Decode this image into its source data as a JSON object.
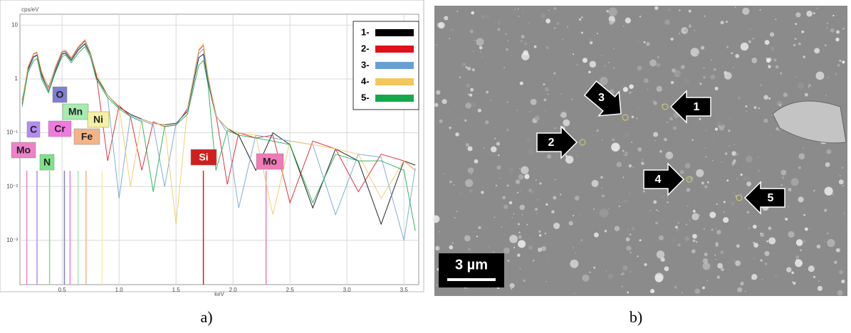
{
  "chart_data": {
    "type": "line",
    "y_label": "cps/eV",
    "x_label": "keV",
    "log_y": true,
    "grid": true,
    "legend": "upper right",
    "xlim": [
      0.13,
      3.63
    ],
    "xticks": [
      0.5,
      {
        "value": 1,
        "label": "1.0"
      },
      1.5,
      {
        "value": 2,
        "label": "2.0"
      },
      2.5,
      {
        "value": 3,
        "label": "3.0"
      },
      3.5
    ],
    "ylim": [
      0.00015,
      16
    ],
    "yticks": [
      {
        "value": 0.001,
        "label": "10⁻³"
      },
      {
        "value": 0.01,
        "label": "10⁻²"
      },
      {
        "value": 0.1,
        "label": "10⁻¹"
      },
      1,
      10
    ],
    "x": [
      0.15,
      0.2,
      0.25,
      0.28,
      0.32,
      0.38,
      0.44,
      0.5,
      0.53,
      0.58,
      0.64,
      0.7,
      0.75,
      0.8,
      0.9,
      1.0,
      1.1,
      1.2,
      1.3,
      1.4,
      1.5,
      1.6,
      1.7,
      1.74,
      1.78,
      1.85,
      1.95,
      2.05,
      2.2,
      2.35,
      2.5,
      2.7,
      2.9,
      3.1,
      3.3,
      3.5,
      3.6
    ],
    "series": [
      {
        "name": "1-",
        "color": "#000000",
        "values": [
          0.4,
          1.5,
          2.6,
          2.8,
          1.2,
          0.6,
          1.4,
          2.9,
          3.0,
          2.2,
          3.4,
          4.5,
          2.8,
          1.1,
          0.5,
          0.3,
          0.22,
          0.18,
          0.15,
          0.14,
          0.15,
          0.25,
          2.5,
          2.9,
          0.9,
          0.2,
          0.12,
          0.09,
          0.02,
          0.1,
          0.06,
          0.004,
          0.05,
          0.03,
          0.002,
          0.03,
          0.025
        ]
      },
      {
        "name": "2-",
        "color": "#e0101c",
        "values": [
          0.35,
          1.6,
          2.9,
          3.1,
          1.3,
          0.7,
          1.6,
          3.2,
          3.3,
          2.4,
          3.8,
          5.2,
          3.0,
          1.2,
          0.03,
          0.32,
          0.2,
          0.02,
          0.16,
          0.13,
          0.14,
          0.28,
          3.4,
          4.2,
          1.1,
          0.22,
          0.011,
          0.1,
          0.08,
          0.09,
          0.005,
          0.07,
          0.05,
          0.008,
          0.04,
          0.03,
          0.02
        ]
      },
      {
        "name": "3-",
        "color": "#6a9fd4",
        "values": [
          0.3,
          1.4,
          2.5,
          2.7,
          1.1,
          0.6,
          1.5,
          3.0,
          3.2,
          2.3,
          3.6,
          5.0,
          2.9,
          1.0,
          0.45,
          0.006,
          0.21,
          0.17,
          0.14,
          0.01,
          0.15,
          0.26,
          3.0,
          3.6,
          1.0,
          0.21,
          0.1,
          0.004,
          0.09,
          0.08,
          0.07,
          0.06,
          0.003,
          0.04,
          0.035,
          0.001,
          0.022
        ]
      },
      {
        "name": "4-",
        "color": "#f2c75c",
        "values": [
          0.38,
          1.7,
          3.0,
          3.2,
          1.4,
          0.65,
          1.7,
          3.4,
          3.5,
          2.5,
          4.0,
          5.5,
          3.1,
          1.3,
          0.5,
          0.31,
          0.01,
          0.18,
          0.15,
          0.14,
          0.002,
          0.27,
          3.6,
          4.5,
          1.2,
          0.2,
          0.12,
          0.1,
          0.09,
          0.003,
          0.07,
          0.06,
          0.05,
          0.04,
          0.006,
          0.03,
          0.02
        ]
      },
      {
        "name": "5-",
        "color": "#14a84a",
        "values": [
          0.33,
          1.3,
          2.2,
          2.4,
          1.0,
          0.55,
          1.3,
          2.6,
          2.8,
          2.0,
          3.0,
          4.0,
          2.5,
          1.0,
          0.45,
          0.28,
          0.2,
          0.16,
          0.008,
          0.13,
          0.14,
          0.22,
          1.8,
          2.2,
          0.8,
          0.02,
          0.11,
          0.09,
          0.08,
          0.07,
          0.06,
          0.005,
          0.04,
          0.03,
          0.03,
          0.02,
          0.0015
        ]
      }
    ],
    "element_markers": [
      {
        "label": "Mo",
        "color": "#ee82c8",
        "x": 0.19
      },
      {
        "label": "C",
        "color": "#b48cf0",
        "x": 0.28
      },
      {
        "label": "N",
        "color": "#7fe08a",
        "x": 0.39
      },
      {
        "label": "O",
        "color": "#7f7fd2",
        "x": 0.52
      },
      {
        "label": "Cr",
        "color": "#f07ae0",
        "x": 0.57
      },
      {
        "label": "Mn",
        "color": "#a6ecb0",
        "x": 0.64
      },
      {
        "label": "Fe",
        "color": "#f2b488",
        "x": 0.71
      },
      {
        "label": "Ni",
        "color": "#f6f0a4",
        "x": 0.85
      },
      {
        "label": "Si",
        "color": "#d0201e",
        "x": 1.74
      },
      {
        "label": "Mo",
        "color": "#f07ab8",
        "x": 2.29
      }
    ]
  },
  "sem_image": {
    "scale_bar": "3 µm",
    "arrows": [
      "1",
      "2",
      "3",
      "4",
      "5"
    ]
  },
  "panel_labels": [
    "a)",
    "b)"
  ]
}
